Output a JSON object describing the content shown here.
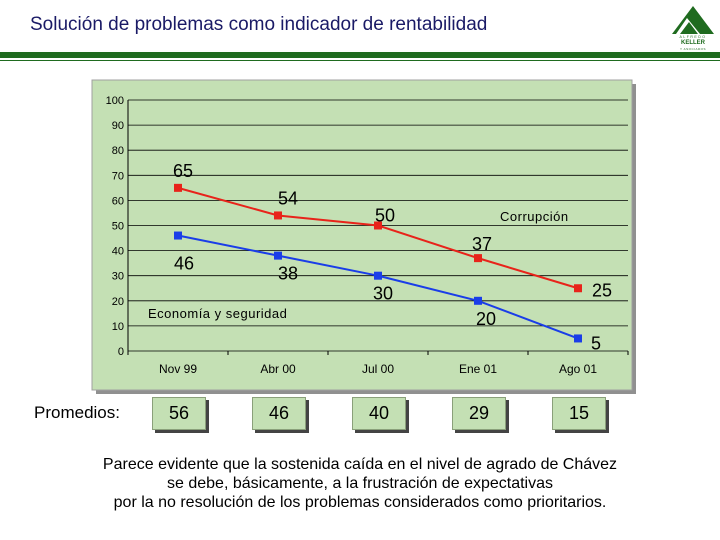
{
  "title": "Solución de problemas como indicador de rentabilidad",
  "logo": {
    "line1": "ALFREDO",
    "line2": "KELLER",
    "line3": "Y ASOCIADOS",
    "icon": "keller-logo-mountain-icon"
  },
  "colors": {
    "green_rule": "#1f6b1f",
    "plot_bg": "#c4e0b4",
    "frame": "#a0a0a0",
    "series_red": "#e8231a",
    "series_blue": "#1a3de8",
    "grid": "#000000",
    "avg_box": "#c4e0b4"
  },
  "chart_data": {
    "type": "line",
    "title": "",
    "xlabel": "",
    "ylabel": "",
    "ylim": [
      0,
      100
    ],
    "yticks": [
      0,
      10,
      20,
      30,
      40,
      50,
      60,
      70,
      80,
      90,
      100
    ],
    "categories": [
      "Nov 99",
      "Abr 00",
      "Jul 00",
      "Ene 01",
      "Ago 01"
    ],
    "grid": true,
    "series": [
      {
        "name": "Corrupción",
        "color": "#e8231a",
        "values": [
          65,
          54,
          50,
          37,
          25
        ]
      },
      {
        "name": "Economía y seguridad",
        "color": "#1a3de8",
        "values": [
          46,
          38,
          30,
          20,
          5
        ]
      }
    ]
  },
  "averages": {
    "label": "Promedios:",
    "values": [
      56,
      46,
      40,
      29,
      15
    ]
  },
  "footnote": [
    "Parece evidente que la sostenida caída en el nivel de agrado de Chávez",
    "se debe, básicamente, a la frustración de expectativas",
    "por la no resolución de los problemas considerados como prioritarios."
  ]
}
